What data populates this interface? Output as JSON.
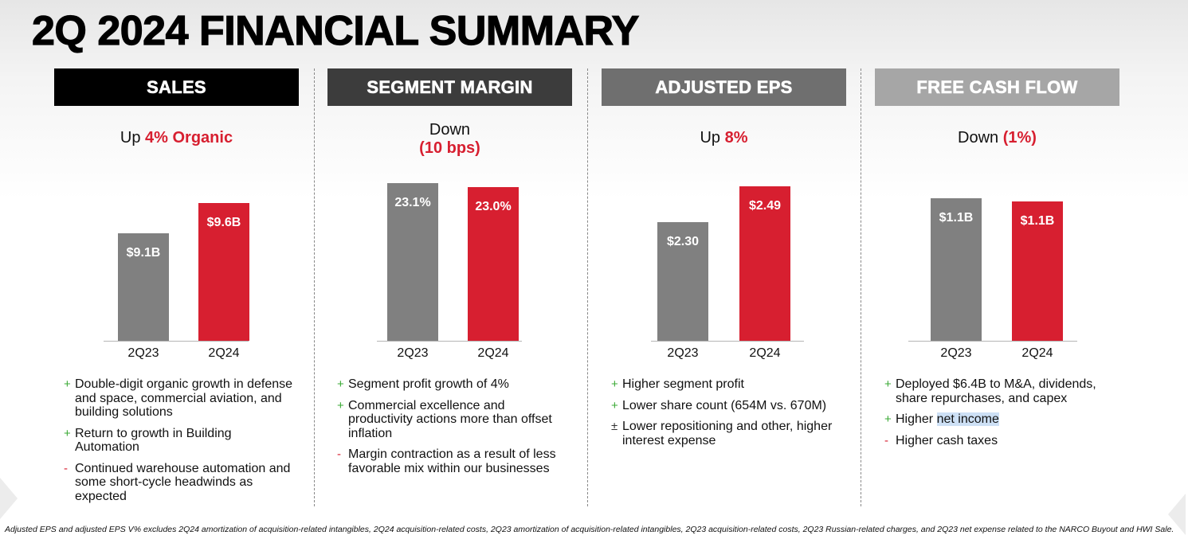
{
  "title": "2Q 2024 FINANCIAL SUMMARY",
  "colors": {
    "red": "#d71f30",
    "gray": "#808080",
    "green": "#3aaa35"
  },
  "columns": [
    {
      "header": "SALES",
      "header_color": "#000000",
      "headline": {
        "prefix": "Up ",
        "highlight": "4% Organic",
        "line2": ""
      },
      "chart_data": {
        "type": "bar",
        "categories": [
          "2Q23",
          "2Q24"
        ],
        "values": [
          9.1,
          9.6
        ],
        "labels": [
          "$9.1B",
          "$9.6B"
        ],
        "unit": "$B"
      },
      "bullets": [
        {
          "mark": "+",
          "type": "plus",
          "text": "Double-digit organic growth in defense and space, commercial aviation, and building solutions"
        },
        {
          "mark": "+",
          "type": "plus",
          "text": "Return to growth in Building Automation"
        },
        {
          "mark": "-",
          "type": "minus",
          "text": "Continued warehouse automation and some short-cycle headwinds as expected"
        }
      ]
    },
    {
      "header": "SEGMENT MARGIN",
      "header_color": "#3c3c3c",
      "headline": {
        "prefix": "Down",
        "highlight": "(10 bps)",
        "line2": "yes"
      },
      "chart_data": {
        "type": "bar",
        "categories": [
          "2Q23",
          "2Q24"
        ],
        "values": [
          23.1,
          23.0
        ],
        "labels": [
          "23.1%",
          "23.0%"
        ],
        "unit": "%"
      },
      "bullets": [
        {
          "mark": "+",
          "type": "plus",
          "text": "Segment profit growth of 4%"
        },
        {
          "mark": "+",
          "type": "plus",
          "text": "Commercial excellence and productivity actions more than offset inflation"
        },
        {
          "mark": "-",
          "type": "minus",
          "text": "Margin contraction as a result of less favorable mix within our businesses"
        }
      ]
    },
    {
      "header": "ADJUSTED EPS",
      "header_color": "#6f6f6f",
      "headline": {
        "prefix": "Up ",
        "highlight": "8%",
        "line2": ""
      },
      "chart_data": {
        "type": "bar",
        "categories": [
          "2Q23",
          "2Q24"
        ],
        "values": [
          2.3,
          2.49
        ],
        "labels": [
          "$2.30",
          "$2.49"
        ],
        "unit": "$"
      },
      "bullets": [
        {
          "mark": "+",
          "type": "plus",
          "text": "Higher segment profit"
        },
        {
          "mark": "+",
          "type": "plus",
          "text": "Lower share count (654M vs. 670M)"
        },
        {
          "mark": "±",
          "type": "pm",
          "text": "Lower repositioning and other, higher interest expense"
        }
      ]
    },
    {
      "header": "FREE CASH FLOW",
      "header_color": "#a6a6a6",
      "headline": {
        "prefix": "Down ",
        "highlight": "(1%)",
        "line2": ""
      },
      "chart_data": {
        "type": "bar",
        "categories": [
          "2Q23",
          "2Q24"
        ],
        "values": [
          1.1,
          1.1
        ],
        "labels": [
          "$1.1B",
          "$1.1B"
        ],
        "unit": "$B"
      },
      "bullets": [
        {
          "mark": "+",
          "type": "plus",
          "text": "Deployed $6.4B to M&A, dividends, share repurchases, and capex"
        },
        {
          "mark": "+",
          "type": "plus",
          "text": "Higher ",
          "highlighted": "net income"
        },
        {
          "mark": "-",
          "type": "minus",
          "text": "Higher cash taxes"
        }
      ]
    }
  ],
  "footnote": "Adjusted EPS and adjusted EPS V% excludes 2Q24 amortization of acquisition-related intangibles, 2Q24 acquisition-related costs, 2Q23 amortization of acquisition-related intangibles, 2Q23 acquisition-related costs, 2Q23 Russian-related charges, and 2Q23 net expense related to the NARCO Buyout and HWI Sale."
}
